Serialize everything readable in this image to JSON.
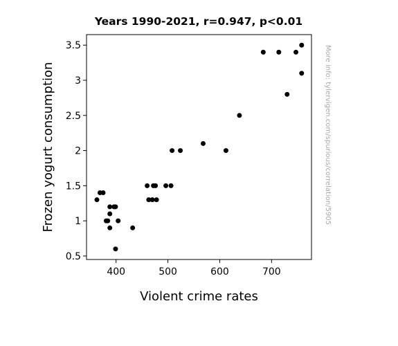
{
  "chart_data": {
    "type": "scatter",
    "title": "Years 1990-2021, r=0.947, p<0.01",
    "xlabel": "Violent crime rates",
    "ylabel": "Frozen yogurt consumption",
    "xlim": [
      343,
      777
    ],
    "ylim": [
      0.45,
      3.65
    ],
    "xticks": [
      400,
      500,
      600,
      700
    ],
    "xtick_labels": [
      "400",
      "500",
      "600",
      "700"
    ],
    "yticks": [
      0.5,
      1,
      1.5,
      2,
      2.5,
      3,
      3.5
    ],
    "ytick_labels": [
      "0.5",
      "1",
      "1.5",
      "2",
      "2.5",
      "3",
      "3.5"
    ],
    "grid": false,
    "marker_color": "#000000",
    "watermark": "More info: tylervigen.com/spurious/correlation/5905",
    "points": [
      {
        "x": 758,
        "y": 3.5
      },
      {
        "x": 758,
        "y": 3.1
      },
      {
        "x": 747,
        "y": 3.4
      },
      {
        "x": 714,
        "y": 3.4
      },
      {
        "x": 684,
        "y": 3.4
      },
      {
        "x": 730,
        "y": 2.8
      },
      {
        "x": 638,
        "y": 2.5
      },
      {
        "x": 612,
        "y": 2.0
      },
      {
        "x": 568,
        "y": 2.1
      },
      {
        "x": 524,
        "y": 2.0
      },
      {
        "x": 508,
        "y": 2.0
      },
      {
        "x": 506,
        "y": 1.5
      },
      {
        "x": 496,
        "y": 1.5
      },
      {
        "x": 476,
        "y": 1.5
      },
      {
        "x": 472,
        "y": 1.5
      },
      {
        "x": 460,
        "y": 1.5
      },
      {
        "x": 478,
        "y": 1.3
      },
      {
        "x": 470,
        "y": 1.3
      },
      {
        "x": 463,
        "y": 1.3
      },
      {
        "x": 432,
        "y": 0.9
      },
      {
        "x": 404,
        "y": 1.0
      },
      {
        "x": 399,
        "y": 1.2
      },
      {
        "x": 396,
        "y": 1.2
      },
      {
        "x": 388,
        "y": 1.2
      },
      {
        "x": 388,
        "y": 1.1
      },
      {
        "x": 388,
        "y": 0.9
      },
      {
        "x": 384,
        "y": 1.0
      },
      {
        "x": 381,
        "y": 1.0
      },
      {
        "x": 399,
        "y": 0.6
      },
      {
        "x": 375,
        "y": 1.4
      },
      {
        "x": 369,
        "y": 1.4
      },
      {
        "x": 363,
        "y": 1.3
      }
    ]
  }
}
